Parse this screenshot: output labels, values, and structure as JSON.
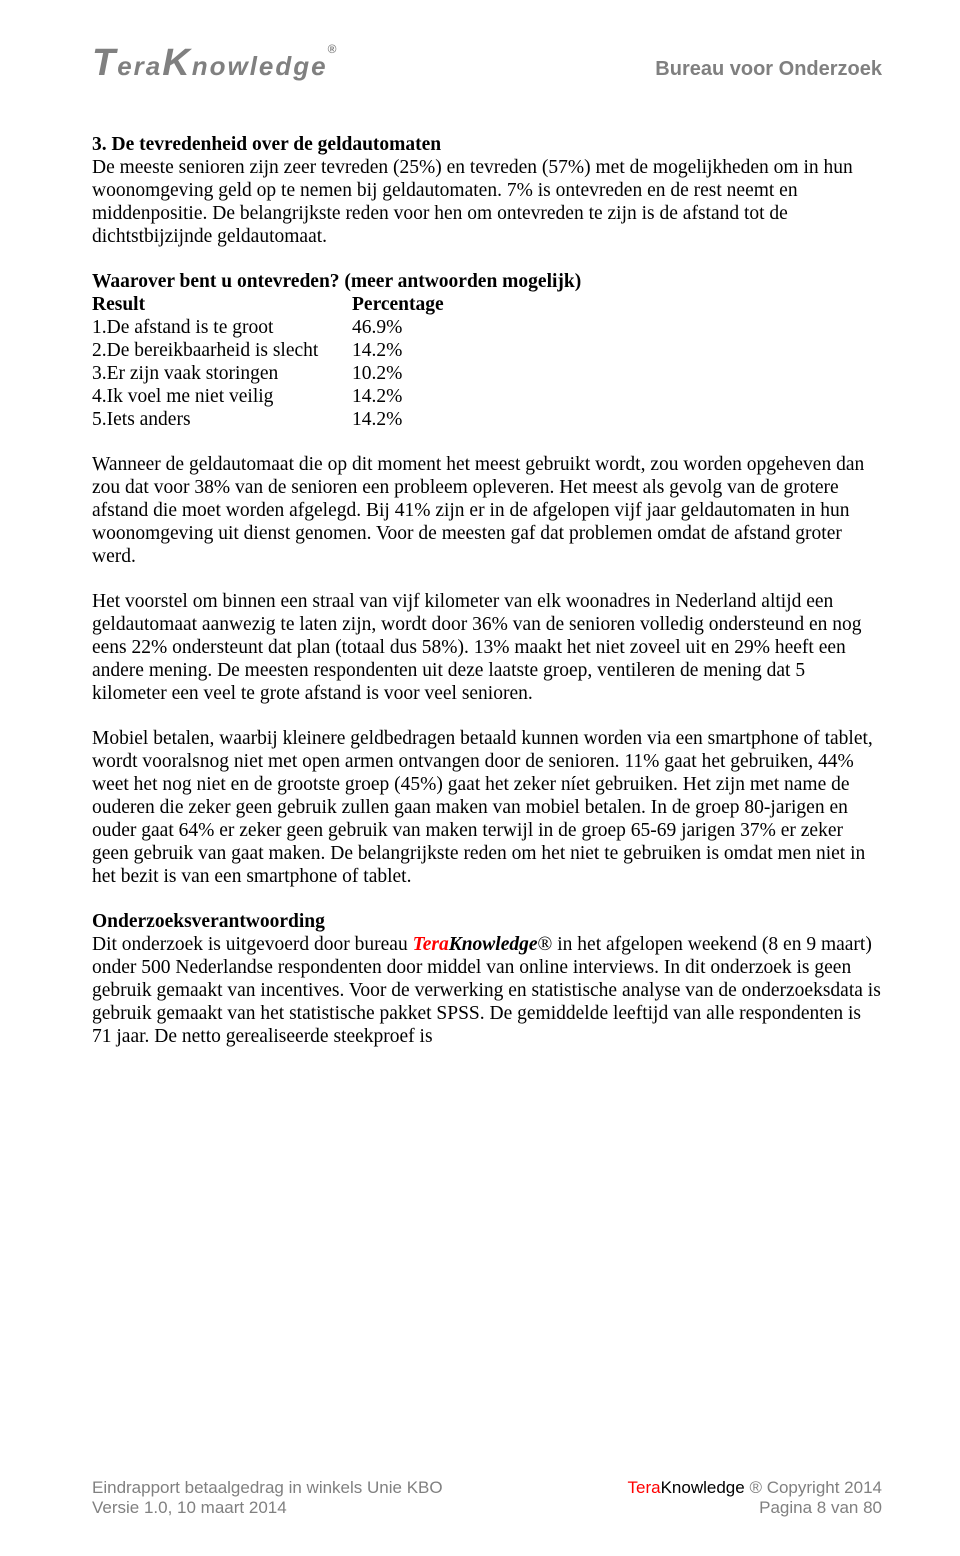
{
  "header": {
    "logo_t": "T",
    "logo_era": "era",
    "logo_k": "K",
    "logo_nowledge": "nowledge",
    "logo_reg": "®",
    "bureau": "Bureau voor Onderzoek"
  },
  "section": {
    "title": "3. De tevredenheid over de geldautomaten",
    "intro": "De meeste senioren zijn zeer tevreden (25%) en tevreden (57%) met de mogelijkheden om in hun woonomgeving geld op te nemen bij geldautomaten. 7% is ontevreden en de rest neemt en middenpositie. De belangrijkste reden voor hen om ontevreden te zijn is de afstand tot de dichtstbijzijnde geldautomaat."
  },
  "table": {
    "question": "Waarover bent u ontevreden? (meer antwoorden mogelijk)",
    "head_result": "Result",
    "head_percentage": "Percentage",
    "rows": [
      {
        "label": "1.De afstand is te groot",
        "pct": "46.9%"
      },
      {
        "label": "2.De bereikbaarheid is slecht",
        "pct": "14.2%"
      },
      {
        "label": "3.Er zijn vaak storingen",
        "pct": "10.2%"
      },
      {
        "label": "4.Ik voel me niet veilig",
        "pct": "14.2%"
      },
      {
        "label": "5.Iets anders",
        "pct": "14.2%"
      }
    ]
  },
  "paras": {
    "p1": "Wanneer de geldautomaat die op dit moment het meest gebruikt wordt, zou worden opgeheven dan zou dat voor 38% van de senioren een probleem opleveren. Het meest als gevolg van de grotere afstand die moet worden afgelegd. Bij 41% zijn er in de afgelopen vijf jaar geldautomaten in hun woonomgeving uit dienst genomen. Voor de meesten gaf dat problemen omdat de afstand groter werd.",
    "p2": "Het voorstel om binnen een straal van vijf kilometer van elk woonadres in Nederland altijd een geldautomaat aanwezig te laten zijn, wordt door 36% van de senioren volledig ondersteund en nog eens 22% ondersteunt dat plan (totaal dus 58%). 13% maakt het niet zoveel uit en 29% heeft een andere mening. De meesten respondenten uit deze laatste groep, ventileren de mening dat 5 kilometer een veel te grote afstand is voor veel senioren.",
    "p3": "Mobiel betalen, waarbij kleinere geldbedragen betaald kunnen worden via een smartphone of tablet, wordt vooralsnog niet met open armen ontvangen door de senioren. 11% gaat het gebruiken, 44% weet het nog niet en de grootste groep (45%) gaat het zeker níet gebruiken. Het zijn met name de ouderen die zeker geen gebruik zullen gaan maken van mobiel betalen. In de groep 80-jarigen en ouder gaat 64% er zeker geen gebruik van maken terwijl in de groep 65-69 jarigen 37% er zeker geen gebruik van gaat maken. De belangrijkste reden om het niet te gebruiken is omdat men niet in het bezit is van een smartphone of tablet."
  },
  "verantwoording": {
    "title": "Onderzoeksverantwoording",
    "pre": "Dit onderzoek is uitgevoerd door bureau ",
    "brand_t": "Tera",
    "brand_k": "Knowledge",
    "reg": "®",
    "post": " in het afgelopen weekend (8 en 9 maart) onder 500 Nederlandse respondenten door middel van online interviews. In dit onderzoek is geen gebruik gemaakt van incentives. Voor de verwerking en statistische analyse van de onderzoeksdata is gebruik gemaakt van het statistische pakket SPSS. De gemiddelde leeftijd van alle respondenten is 71 jaar. De netto gerealiseerde steekproef is"
  },
  "footer": {
    "left1": "Eindrapport betaalgedrag in winkels Unie KBO",
    "left2": "Versie 1.0,  10 maart 2014",
    "right_t": "Tera",
    "right_k": "Knowledge",
    "right_rest": " ® Copyright 2014",
    "page": "Pagina 8 van 80"
  }
}
